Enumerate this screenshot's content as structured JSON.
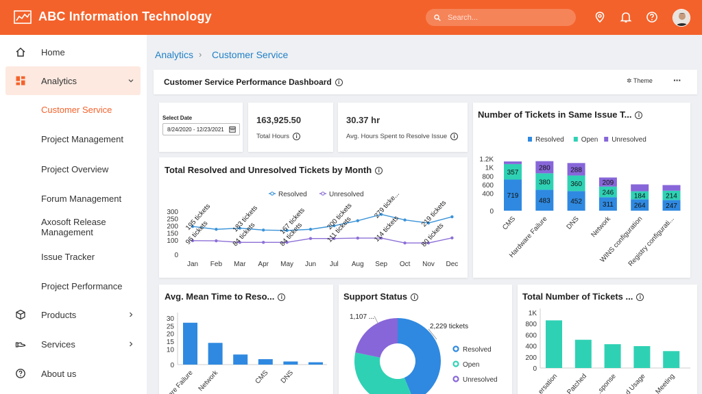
{
  "header": {
    "title": "ABC Information Technology",
    "search_placeholder": "Search...",
    "icons": [
      "logo-chart-icon",
      "location-icon",
      "bell-icon",
      "help-icon"
    ],
    "accent": "#f4622b"
  },
  "sidebar": {
    "items": [
      {
        "label": "Home",
        "icon": "home-icon"
      },
      {
        "label": "Analytics",
        "icon": "dashboard-icon",
        "expanded": true
      },
      {
        "label": "Products",
        "icon": "box-icon"
      },
      {
        "label": "Services",
        "icon": "hand-icon"
      },
      {
        "label": "About us",
        "icon": "help-icon"
      }
    ],
    "sub_items": [
      "Customer Service",
      "Project Management",
      "Project Overview",
      "Forum Management",
      "Axosoft Release Management",
      "Issue Tracker",
      "Project Performance"
    ]
  },
  "breadcrumb": {
    "root": "Analytics",
    "current": "Customer Service"
  },
  "dashboard": {
    "title": "Customer Service Performance Dashboard",
    "theme_label": "Theme",
    "more_label": "···"
  },
  "date_filter": {
    "label": "Select Date",
    "value": "8/24/2020 - 12/23/2021"
  },
  "kpis": [
    {
      "value": "163,925.50",
      "label": "Total Hours"
    },
    {
      "value": "30.37 hr",
      "label": "Avg. Hours Spent to Resolve Issue"
    }
  ],
  "charts": {
    "monthly": {
      "title": "Total Resolved and Unresolved Tickets by Month"
    },
    "same_issue": {
      "title": "Number of Tickets in Same Issue T..."
    },
    "mean_time": {
      "title": "Avg. Mean Time to Reso..."
    },
    "support": {
      "title": "Support Status"
    },
    "total": {
      "title": "Total Number of Tickets ..."
    }
  },
  "chart_data": [
    {
      "type": "line",
      "title": "Total Resolved and Unresolved Tickets by Month",
      "categories": [
        "Jan",
        "Feb",
        "Mar",
        "Apr",
        "May",
        "Jun",
        "Jul",
        "Aug",
        "Sep",
        "Oct",
        "Nov",
        "Dec"
      ],
      "ylim": [
        0,
        300
      ],
      "yticks": [
        0,
        100,
        150,
        200,
        250,
        300
      ],
      "legend": "top",
      "series": [
        {
          "name": "Resolved",
          "color": "#3a93d8",
          "values": [
            195,
            175,
            183,
            170,
            167,
            175,
            200,
            235,
            279,
            240,
            219,
            262
          ]
        },
        {
          "name": "Unresolved",
          "color": "#8c6fd6",
          "values": [
            96,
            95,
            84,
            84,
            84,
            111,
            111,
            114,
            114,
            80,
            80,
            115
          ]
        }
      ],
      "labels": [
        {
          "text": "195 tickets",
          "cat": 0,
          "value": 195
        },
        {
          "text": "96 tickets",
          "cat": 0,
          "value": 96
        },
        {
          "text": "183 tickets",
          "cat": 2,
          "value": 183
        },
        {
          "text": "84 tickets",
          "cat": 2,
          "value": 84
        },
        {
          "text": "167 tickets",
          "cat": 4,
          "value": 167
        },
        {
          "text": "84 tickets",
          "cat": 4,
          "value": 84
        },
        {
          "text": "200 tickets",
          "cat": 6,
          "value": 200
        },
        {
          "text": "111 tickets",
          "cat": 6,
          "value": 111
        },
        {
          "text": "279 ticke...",
          "cat": 8,
          "value": 279
        },
        {
          "text": "114 tickets",
          "cat": 8,
          "value": 114
        },
        {
          "text": "219 tickets",
          "cat": 10,
          "value": 219
        },
        {
          "text": "80 tickets",
          "cat": 10,
          "value": 80
        }
      ]
    },
    {
      "type": "bar",
      "stacked": true,
      "title": "Number of Tickets in Same Issue T...",
      "categories": [
        "CMS",
        "Hardware Failure",
        "DNS",
        "Network",
        "WINS configuration",
        "Registry configurati..."
      ],
      "ylim": [
        0,
        1200
      ],
      "ytick_labels": [
        "0",
        "400",
        "600",
        "800",
        "1K",
        "1.2K"
      ],
      "ytick_values": [
        0,
        400,
        600,
        800,
        1000,
        1200
      ],
      "legend": "top",
      "series": [
        {
          "name": "Resolved",
          "color": "#2f89e0",
          "values": [
            719,
            483,
            452,
            311,
            264,
            247
          ]
        },
        {
          "name": "Open",
          "color": "#2fd1b4",
          "values": [
            357,
            380,
            360,
            246,
            184,
            214
          ]
        },
        {
          "name": "Unresolved",
          "color": "#8766d9",
          "values": [
            60,
            280,
            288,
            209,
            160,
            130
          ]
        }
      ],
      "shown_labels": {
        "Resolved": [
          "719",
          "483",
          "452",
          "311",
          "264",
          "247"
        ],
        "Open": [
          "357",
          "380",
          "360",
          "246",
          "184",
          "214"
        ],
        "Unresolved": [
          "",
          "280",
          "288",
          "209",
          "",
          ""
        ]
      }
    },
    {
      "type": "bar",
      "title": "Avg. Mean Time to Reso...",
      "categories": [
        "Hardware Failure",
        "Network",
        "",
        "CMS",
        "DNS",
        ""
      ],
      "values": [
        27,
        14,
        6.5,
        3.5,
        2,
        1.5
      ],
      "ylim": [
        0,
        30
      ],
      "yticks": [
        0,
        10,
        15,
        20,
        25,
        30
      ],
      "color": "#2f89e0"
    },
    {
      "type": "pie",
      "donut": true,
      "title": "Support Status",
      "slices": [
        {
          "name": "Resolved",
          "value": 2229,
          "label": "2,229 tickets",
          "color": "#2f89e0"
        },
        {
          "name": "Open",
          "value": 1750,
          "label": "",
          "color": "#2fd1b4"
        },
        {
          "name": "Unresolved",
          "value": 1107,
          "label": "1,107 ...",
          "color": "#8766d9"
        }
      ],
      "legend": "right"
    },
    {
      "type": "bar",
      "title": "Total Number of Tickets ...",
      "categories": [
        "...ersation",
        "Patched",
        "...sponse",
        "...d Usage",
        "Meeting"
      ],
      "values": [
        860,
        510,
        430,
        395,
        305
      ],
      "ylim": [
        0,
        1000
      ],
      "yticks": [
        0,
        200,
        400,
        600,
        800,
        1000
      ],
      "ytick_labels": [
        "0",
        "200",
        "400",
        "600",
        "800",
        "1K"
      ],
      "color": "#2fd1b4"
    }
  ]
}
